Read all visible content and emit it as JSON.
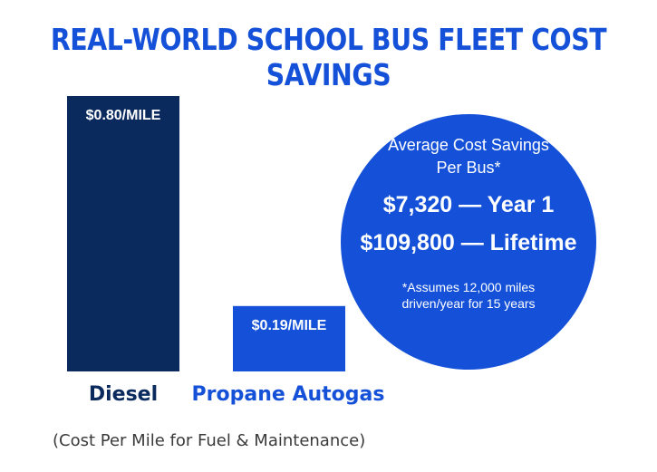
{
  "title": "REAL-WORLD SCHOOL BUS FLEET COST SAVINGS",
  "chart_data": {
    "type": "bar",
    "categories": [
      "Diesel",
      "Propane Autogas"
    ],
    "values": [
      0.8,
      0.19
    ],
    "value_labels": [
      "$0.80/MILE",
      "$0.19/MILE"
    ],
    "caption": "(Cost Per Mile for Fuel & Maintenance)",
    "colors": {
      "diesel_bar": "#0a2a5e",
      "propane_bar": "#1451d8",
      "diesel_label": "#0a2a5e",
      "propane_label": "#1451d8"
    }
  },
  "callout": {
    "heading_line1": "Average Cost Savings",
    "heading_line2": "Per Bus*",
    "year1": "$7,320 — Year 1",
    "lifetime": "$109,800 — Lifetime",
    "footnote_line1": "*Assumes 12,000 miles",
    "footnote_line2": "driven/year for 15 years"
  }
}
